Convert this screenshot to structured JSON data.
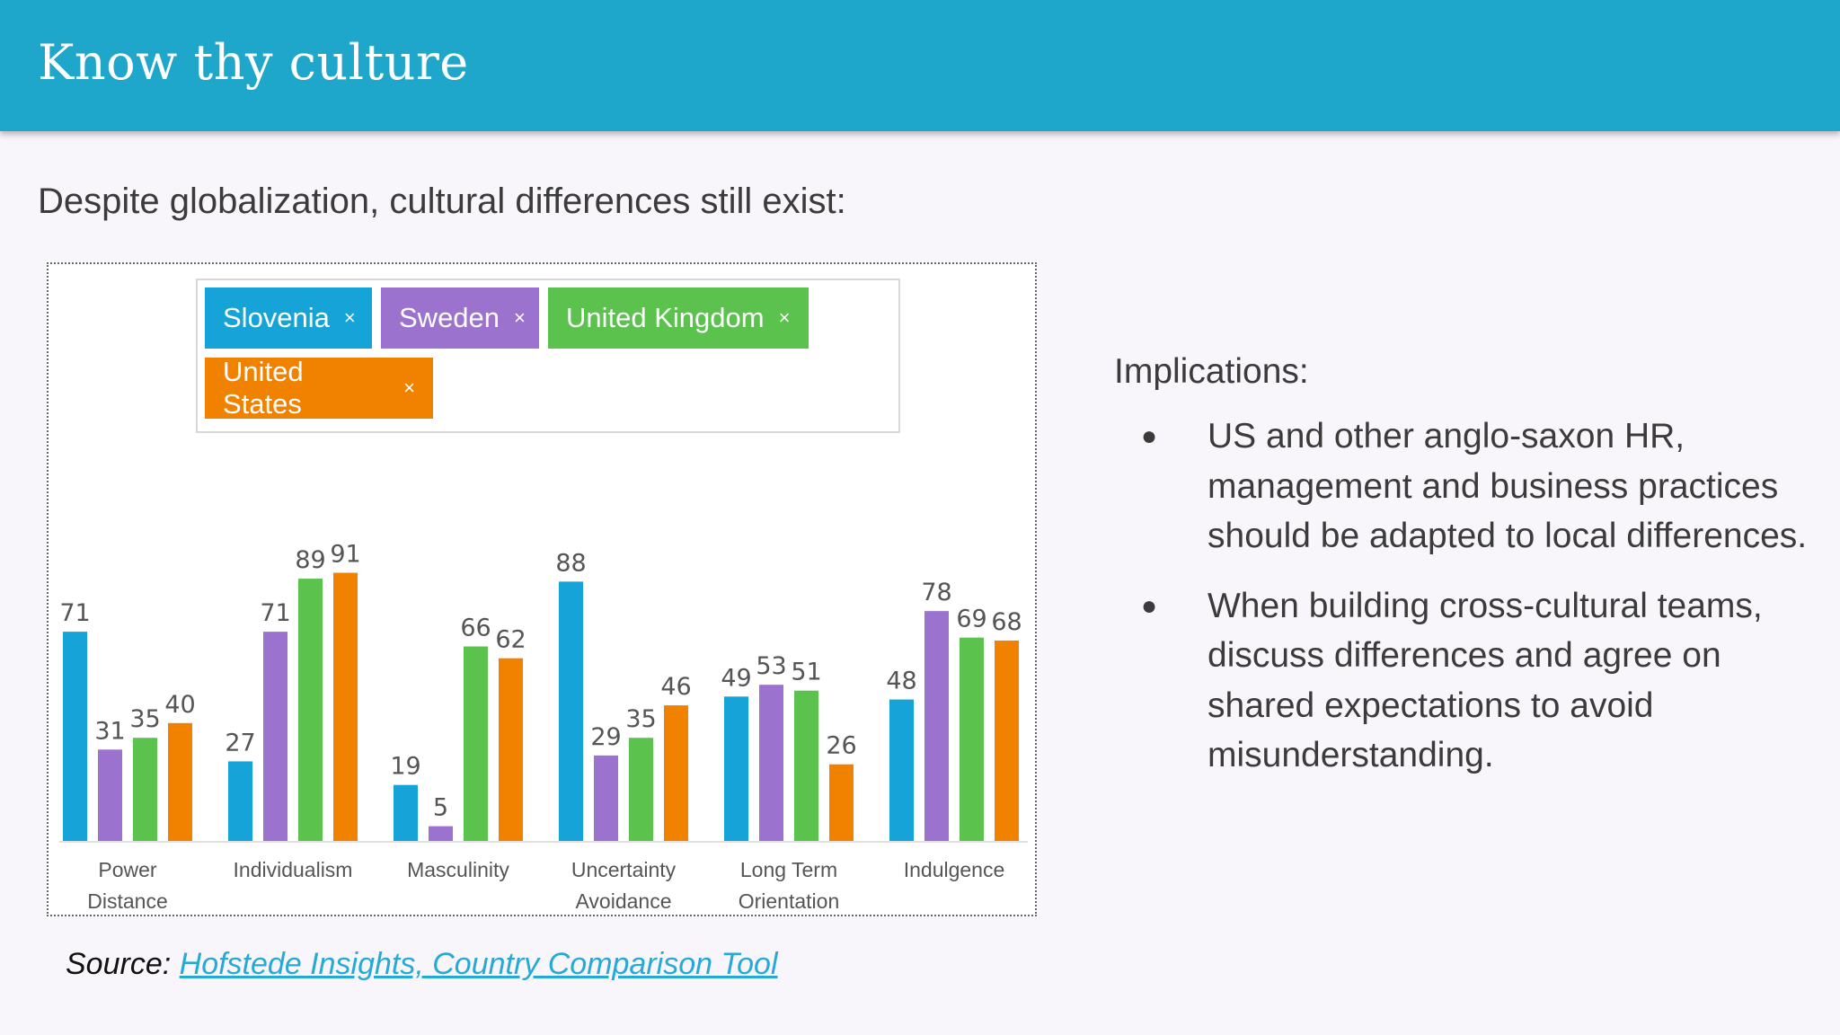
{
  "header": {
    "title": "Know thy culture"
  },
  "subtitle": "Despite globalization, cultural differences still exist:",
  "legend": {
    "chips": [
      {
        "label": "Slovenia",
        "close": "×",
        "color": "#16a4d8"
      },
      {
        "label": "Sweden",
        "close": "×",
        "color": "#9b73cf"
      },
      {
        "label": "United Kingdom",
        "close": "×",
        "color": "#5ac24d"
      },
      {
        "label": "United States",
        "close": "×",
        "color": "#f08200"
      }
    ]
  },
  "implications": {
    "heading": "Implications:",
    "bullets": [
      "US and other anglo-saxon HR, management and business practices should be adapted to local differences.",
      "When building cross-cultural teams, discuss differences and agree on shared expectations to avoid misunderstanding."
    ],
    "bullet_glyph": "●"
  },
  "source": {
    "prefix": "Source:",
    "link_text": "Hofstede Insights, Country Comparison Tool"
  },
  "chart_data": {
    "type": "bar",
    "categories": [
      [
        "Power",
        "Distance"
      ],
      [
        "Individualism"
      ],
      [
        "Masculinity"
      ],
      [
        "Uncertainty",
        "Avoidance"
      ],
      [
        "Long Term",
        "Orientation"
      ],
      [
        "Indulgence"
      ]
    ],
    "series": [
      {
        "name": "Slovenia",
        "color": "#16a4d8",
        "values": [
          71,
          27,
          19,
          88,
          49,
          48
        ]
      },
      {
        "name": "Sweden",
        "color": "#9b73cf",
        "values": [
          31,
          71,
          5,
          29,
          53,
          78
        ]
      },
      {
        "name": "United Kingdom",
        "color": "#5ac24d",
        "values": [
          35,
          89,
          66,
          35,
          51,
          69
        ]
      },
      {
        "name": "United States",
        "color": "#f08200",
        "values": [
          40,
          91,
          62,
          46,
          26,
          68
        ]
      }
    ],
    "ylim": [
      0,
      100
    ],
    "grid": false,
    "legend": "top"
  }
}
